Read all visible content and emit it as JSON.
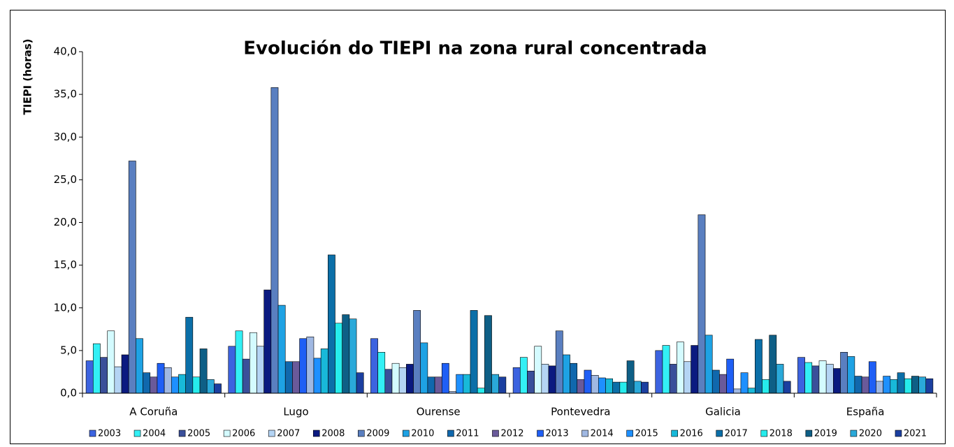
{
  "chart_data": {
    "type": "bar",
    "title": "Evolución do TIEPI na zona rural concentrada",
    "y_label": "TIEPI (horas)",
    "categories": [
      "A Coruña",
      "Lugo",
      "Ourense",
      "Pontevedra",
      "Galicia",
      "España"
    ],
    "ylim": [
      0,
      40
    ],
    "yticks": [
      {
        "value": 0,
        "label": "0,0"
      },
      {
        "value": 5,
        "label": "5,0"
      },
      {
        "value": 10,
        "label": "10,0"
      },
      {
        "value": 15,
        "label": "15,0"
      },
      {
        "value": 20,
        "label": "20,0"
      },
      {
        "value": 25,
        "label": "25,0"
      },
      {
        "value": 30,
        "label": "30,0"
      },
      {
        "value": 35,
        "label": "35,0"
      },
      {
        "value": 40,
        "label": "40,0"
      }
    ],
    "series": [
      {
        "name": "2003",
        "color": "#3c63e0",
        "values": [
          3.8,
          5.5,
          6.4,
          3.0,
          5.0,
          4.2
        ]
      },
      {
        "name": "2004",
        "color": "#33f0f5",
        "values": [
          5.8,
          7.3,
          4.8,
          4.2,
          5.6,
          3.6
        ]
      },
      {
        "name": "2005",
        "color": "#3a4f9a",
        "values": [
          4.2,
          4.0,
          2.8,
          2.6,
          3.4,
          3.2
        ]
      },
      {
        "name": "2006",
        "color": "#d4fbff",
        "values": [
          7.3,
          7.1,
          3.5,
          5.5,
          6.0,
          3.8
        ]
      },
      {
        "name": "2007",
        "color": "#b4d4f4",
        "values": [
          3.1,
          5.5,
          3.0,
          3.4,
          3.7,
          3.4
        ]
      },
      {
        "name": "2008",
        "color": "#0b1a80",
        "values": [
          4.5,
          12.1,
          3.4,
          3.2,
          5.6,
          2.9
        ]
      },
      {
        "name": "2009",
        "color": "#5a7fc0",
        "values": [
          27.2,
          35.8,
          9.7,
          7.3,
          20.9,
          4.8
        ]
      },
      {
        "name": "2010",
        "color": "#1ea2e4",
        "values": [
          6.4,
          10.3,
          5.9,
          4.5,
          6.8,
          4.3
        ]
      },
      {
        "name": "2011",
        "color": "#1068ad",
        "values": [
          2.4,
          3.7,
          1.9,
          3.5,
          2.7,
          2.0
        ]
      },
      {
        "name": "2012",
        "color": "#6a5a9a",
        "values": [
          1.9,
          3.7,
          1.9,
          1.6,
          2.2,
          1.9
        ]
      },
      {
        "name": "2013",
        "color": "#1f5ff5",
        "values": [
          3.5,
          6.4,
          3.5,
          2.7,
          4.0,
          3.7
        ]
      },
      {
        "name": "2014",
        "color": "#a0b8e2",
        "values": [
          3.0,
          6.6,
          0.2,
          2.1,
          0.5,
          1.4
        ]
      },
      {
        "name": "2015",
        "color": "#1e90ff",
        "values": [
          1.9,
          4.1,
          2.2,
          1.8,
          2.4,
          2.0
        ]
      },
      {
        "name": "2016",
        "color": "#18b9d9",
        "values": [
          2.2,
          5.2,
          2.2,
          1.7,
          0.6,
          1.6
        ]
      },
      {
        "name": "2017",
        "color": "#0b6fa8",
        "values": [
          8.9,
          16.2,
          9.7,
          1.3,
          6.3,
          2.4
        ]
      },
      {
        "name": "2018",
        "color": "#26ecec",
        "values": [
          1.9,
          8.2,
          0.6,
          1.3,
          1.6,
          1.7
        ]
      },
      {
        "name": "2019",
        "color": "#0e5f86",
        "values": [
          5.2,
          9.2,
          9.1,
          3.8,
          6.8,
          2.0
        ]
      },
      {
        "name": "2020",
        "color": "#2aa9d9",
        "values": [
          1.6,
          8.7,
          2.2,
          1.4,
          3.4,
          1.9
        ]
      },
      {
        "name": "2021",
        "color": "#1b3fa0",
        "values": [
          1.1,
          2.4,
          1.9,
          1.3,
          1.4,
          1.7
        ]
      }
    ]
  }
}
